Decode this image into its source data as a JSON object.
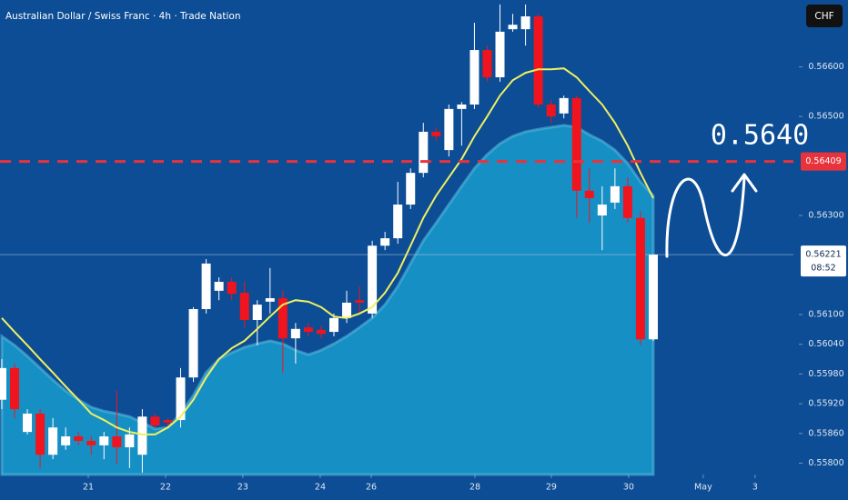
{
  "chart_data": {
    "type": "candlestick",
    "title": "Australian Dollar / Swiss Franc · 4h · Trade Nation",
    "currency_button": "CHF",
    "annotation": "0.5640",
    "up_color": "#ffffff",
    "down_color": "#f0141e",
    "xlim": [
      -0.14,
      61.97
    ],
    "xticks": [
      {
        "value": 6.77,
        "label": "21"
      },
      {
        "value": 12.82,
        "label": "22"
      },
      {
        "value": 18.87,
        "label": "23"
      },
      {
        "value": 24.93,
        "label": "24"
      },
      {
        "value": 28.92,
        "label": "26"
      },
      {
        "value": 37.04,
        "label": "28"
      },
      {
        "value": 43.02,
        "label": "29"
      },
      {
        "value": 49.07,
        "label": "30"
      },
      {
        "value": 54.91,
        "label": "May"
      },
      {
        "value": 58.97,
        "label": "3"
      }
    ],
    "ylim": [
      0.55777,
      0.56735
    ],
    "yticks": [
      {
        "value": 0.558,
        "label": "0.55800"
      },
      {
        "value": 0.5586,
        "label": "0.55860"
      },
      {
        "value": 0.5592,
        "label": "0.55920"
      },
      {
        "value": 0.5598,
        "label": "0.55980"
      },
      {
        "value": 0.5604,
        "label": "0.56040"
      },
      {
        "value": 0.561,
        "label": "0.56100"
      },
      {
        "value": 0.563,
        "label": "0.56300"
      },
      {
        "value": 0.565,
        "label": "0.56500"
      },
      {
        "value": 0.566,
        "label": "0.56600"
      }
    ],
    "open": [
      0.55928,
      0.55992,
      0.55863,
      0.559,
      0.55817,
      0.55836,
      0.55854,
      0.55845,
      0.55836,
      0.55854,
      0.55832,
      0.55817,
      0.55894,
      0.55887,
      0.55887,
      0.55973,
      0.56111,
      0.56148,
      0.56166,
      0.56144,
      0.56089,
      0.56126,
      0.56133,
      0.56052,
      0.56074,
      0.56069,
      0.56065,
      0.56093,
      0.56129,
      0.56102,
      0.56239,
      0.56254,
      0.56322,
      0.56386,
      0.56469,
      0.56432,
      0.56515,
      0.56524,
      0.56634,
      0.56579,
      0.56676,
      0.56676,
      0.56702,
      0.56524,
      0.56506,
      0.56537,
      0.5635,
      0.563,
      0.56326,
      0.56359,
      0.56295,
      0.5605
    ],
    "high": [
      0.5601,
      0.56001,
      0.55909,
      0.55909,
      0.55891,
      0.55872,
      0.55863,
      0.55854,
      0.55863,
      0.55946,
      0.55872,
      0.55909,
      0.559,
      0.55891,
      0.55992,
      0.56115,
      0.56212,
      0.56175,
      0.56175,
      0.56166,
      0.56129,
      0.56194,
      0.56148,
      0.56083,
      0.56083,
      0.56078,
      0.56102,
      0.56148,
      0.56157,
      0.56249,
      0.56267,
      0.56368,
      0.56395,
      0.56487,
      0.56478,
      0.56524,
      0.56529,
      0.56689,
      0.56643,
      0.56726,
      0.56707,
      0.56726,
      0.56707,
      0.56533,
      0.56542,
      0.56542,
      0.56395,
      0.56359,
      0.56395,
      0.56377,
      0.56309,
      0.56221
    ],
    "low": [
      0.55909,
      0.55891,
      0.55858,
      0.5579,
      0.55808,
      0.55827,
      0.55836,
      0.55817,
      0.55808,
      0.55799,
      0.5579,
      0.55781,
      0.55872,
      0.55876,
      0.55872,
      0.55964,
      0.56102,
      0.56129,
      0.56129,
      0.56074,
      0.56038,
      0.56102,
      0.55983,
      0.56001,
      0.56056,
      0.56052,
      0.56056,
      0.56083,
      0.56102,
      0.56093,
      0.5623,
      0.56243,
      0.56313,
      0.56377,
      0.5645,
      0.56419,
      0.56441,
      0.56515,
      0.5657,
      0.5657,
      0.56671,
      0.56643,
      0.56518,
      0.56487,
      0.56496,
      0.56295,
      0.56285,
      0.5623,
      0.56313,
      0.56285,
      0.56038,
      0.56047
    ],
    "close": [
      0.55992,
      0.55909,
      0.559,
      0.55817,
      0.55872,
      0.55854,
      0.55845,
      0.55836,
      0.55854,
      0.55832,
      0.55858,
      0.55894,
      0.55876,
      0.55882,
      0.55973,
      0.56111,
      0.56203,
      0.56166,
      0.56142,
      0.56089,
      0.5612,
      0.56133,
      0.56052,
      0.56071,
      0.56065,
      0.56061,
      0.56093,
      0.56124,
      0.56124,
      0.56239,
      0.56254,
      0.56322,
      0.56386,
      0.56469,
      0.5646,
      0.56515,
      0.56524,
      0.56634,
      0.56579,
      0.56671,
      0.56685,
      0.56702,
      0.56524,
      0.565,
      0.56537,
      0.5635,
      0.56335,
      0.56322,
      0.56359,
      0.56295,
      0.5605,
      0.56221
    ],
    "ma": {
      "color": "#f0f060",
      "values": [
        0.56093,
        0.56065,
        0.56038,
        0.5601,
        0.55983,
        0.55955,
        0.55928,
        0.559,
        0.55887,
        0.55872,
        0.55863,
        0.55858,
        0.55858,
        0.55872,
        0.55894,
        0.55928,
        0.55973,
        0.5601,
        0.56032,
        0.56047,
        0.56071,
        0.56096,
        0.5612,
        0.56129,
        0.56126,
        0.56115,
        0.56096,
        0.56093,
        0.56102,
        0.56115,
        0.56144,
        0.56184,
        0.56239,
        0.56295,
        0.5634,
        0.56377,
        0.56414,
        0.5646,
        0.565,
        0.56542,
        0.56573,
        0.56588,
        0.56595,
        0.56595,
        0.56597,
        0.56579,
        0.56551,
        0.56524,
        0.56487,
        0.56441,
        0.56386,
        0.56335
      ]
    },
    "area": {
      "color": "#1690c4",
      "values": [
        0.56056,
        0.56038,
        0.56016,
        0.55992,
        0.55968,
        0.55946,
        0.55928,
        0.55913,
        0.55905,
        0.559,
        0.55894,
        0.55882,
        0.55869,
        0.55872,
        0.559,
        0.55937,
        0.55983,
        0.5601,
        0.56023,
        0.56034,
        0.56041,
        0.56047,
        0.56041,
        0.56028,
        0.56019,
        0.56028,
        0.56041,
        0.56056,
        0.56074,
        0.56093,
        0.5612,
        0.56157,
        0.56203,
        0.56249,
        0.56285,
        0.56322,
        0.56359,
        0.56395,
        0.56423,
        0.56445,
        0.5646,
        0.56469,
        0.56474,
        0.56478,
        0.56482,
        0.56478,
        0.56463,
        0.5645,
        0.56432,
        0.56405,
        0.56368,
        0.5634
      ]
    },
    "level": {
      "value": 0.56409,
      "label": "0.56409",
      "color": "#e8323c"
    },
    "current_price": {
      "value": 0.56221,
      "label": "0.56221",
      "countdown": "08:52"
    }
  }
}
